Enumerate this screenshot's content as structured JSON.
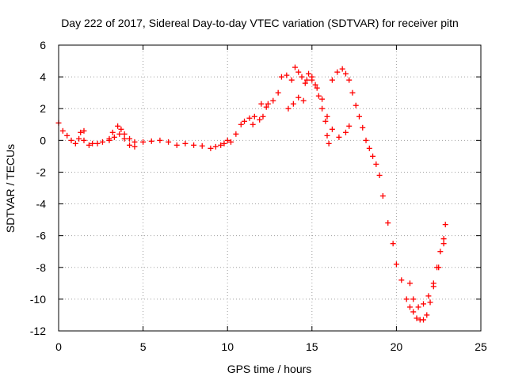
{
  "chart_data": {
    "type": "scatter",
    "title": "Day 222 of 2017, Sidereal Day-to-day VTEC variation (SDTVAR) for receiver pitn",
    "xlabel": "GPS time / hours",
    "ylabel": "SDTVAR / TECUs",
    "xlim": [
      0,
      25
    ],
    "ylim": [
      -12,
      6
    ],
    "xticks": [
      0,
      5,
      10,
      15,
      20,
      25
    ],
    "yticks": [
      -12,
      -10,
      -8,
      -6,
      -4,
      -2,
      0,
      2,
      4,
      6
    ],
    "grid": true,
    "marker": "+",
    "series": [
      {
        "name": "SDTVAR",
        "color": "#ff0000",
        "x": [
          0.0,
          0.25,
          0.5,
          0.75,
          1.0,
          1.2,
          1.5,
          1.8,
          2.0,
          2.3,
          2.6,
          3.0,
          3.2,
          3.5,
          3.7,
          3.9,
          4.2,
          4.5,
          5.0,
          5.5,
          6.0,
          6.5,
          7.0,
          7.5,
          8.0,
          8.5,
          9.0,
          9.3,
          9.6,
          9.8,
          10.0,
          10.2,
          10.5,
          10.8,
          11.0,
          11.3,
          11.6,
          11.9,
          12.1,
          12.3,
          12.4,
          12.7,
          13.0,
          13.2,
          13.5,
          13.8,
          14.0,
          14.2,
          14.4,
          14.6,
          14.8,
          15.0,
          15.2,
          15.4,
          15.6,
          15.8,
          15.9,
          16.0,
          16.2,
          16.5,
          16.8,
          17.0,
          17.2,
          17.4,
          17.6,
          17.8,
          18.0,
          18.2,
          18.4,
          18.6,
          18.8,
          19.0,
          19.2,
          19.5,
          19.8,
          20.0,
          20.3,
          20.6,
          20.8,
          21.0,
          21.2,
          21.4,
          21.6,
          21.8,
          22.0,
          22.2,
          22.4,
          22.6,
          22.8,
          22.9,
          3.0,
          3.3,
          3.6,
          3.9,
          4.2,
          4.5,
          13.6,
          13.9,
          14.2,
          14.5,
          14.7,
          15.0,
          15.3,
          15.6,
          15.9,
          16.2,
          16.6,
          17.0,
          17.2,
          20.8,
          21.0,
          21.3,
          21.6,
          21.9,
          22.2,
          22.5,
          22.8,
          1.3,
          1.5,
          11.5,
          12.0
        ],
        "y": [
          1.1,
          0.6,
          0.3,
          0.0,
          -0.2,
          0.1,
          0.0,
          -0.3,
          -0.2,
          -0.2,
          -0.1,
          0.1,
          0.5,
          0.9,
          0.7,
          0.4,
          0.1,
          -0.1,
          -0.1,
          -0.05,
          0.0,
          -0.1,
          -0.3,
          -0.2,
          -0.3,
          -0.35,
          -0.5,
          -0.4,
          -0.3,
          -0.2,
          0.0,
          -0.1,
          0.4,
          1.0,
          1.2,
          1.4,
          1.5,
          1.3,
          1.5,
          2.1,
          2.3,
          2.5,
          3.0,
          4.0,
          4.1,
          3.8,
          4.6,
          4.3,
          4.0,
          3.6,
          4.2,
          3.8,
          3.5,
          2.8,
          2.0,
          1.2,
          0.3,
          -0.2,
          3.8,
          4.3,
          4.5,
          4.2,
          3.8,
          3.0,
          2.2,
          1.5,
          0.8,
          0.0,
          -0.5,
          -1.0,
          -1.5,
          -2.2,
          -3.5,
          -5.2,
          -6.5,
          -7.8,
          -8.8,
          -10.0,
          -10.5,
          -10.8,
          -11.2,
          -11.3,
          -11.3,
          -11.0,
          -10.2,
          -9.2,
          -8.0,
          -7.0,
          -6.2,
          -5.3,
          0.0,
          0.2,
          0.4,
          0.1,
          -0.3,
          -0.4,
          2.0,
          2.3,
          2.7,
          2.5,
          3.8,
          4.0,
          3.3,
          2.6,
          1.5,
          0.7,
          0.2,
          0.5,
          0.9,
          -9.0,
          -10.0,
          -10.5,
          -10.3,
          -9.8,
          -9.0,
          -8.0,
          -6.5,
          0.5,
          0.6,
          1.0,
          2.3
        ]
      }
    ]
  }
}
